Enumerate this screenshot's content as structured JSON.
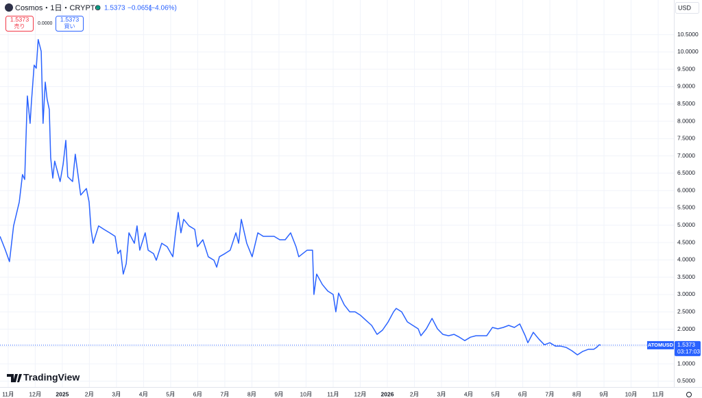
{
  "header": {
    "symbol": "Cosmos・1日・CRYPTO",
    "last": "1.5373",
    "change": "−0.0651",
    "change_pct": "(−4.06%)",
    "sell_price": "1.5373",
    "sell": "売り",
    "spread": "0.0000",
    "buy_price": "1.5373",
    "buy": "買い",
    "currency": "USD",
    "brand": "TradingView"
  },
  "chart_data": {
    "type": "line",
    "x": [
      -0.3,
      -0.1,
      0.05,
      0.2,
      0.41,
      0.53,
      0.61,
      0.71,
      0.81,
      0.86,
      0.96,
      1.04,
      1.11,
      1.22,
      1.29,
      1.37,
      1.44,
      1.52,
      1.57,
      1.65,
      1.72,
      1.92,
      2.03,
      2.13,
      2.2,
      2.38,
      2.48,
      2.68,
      2.89,
      2.99,
      3.06,
      3.14,
      3.34,
      3.54,
      3.75,
      3.95,
      4.05,
      4.15,
      4.25,
      4.36,
      4.46,
      4.66,
      4.76,
      4.86,
      5.06,
      5.17,
      5.37,
      5.47,
      5.67,
      5.87,
      6.08,
      6.18,
      6.28,
      6.38,
      6.48,
      6.68,
      6.89,
      6.99,
      7.19,
      7.39,
      7.6,
      7.7,
      7.8,
      8.0,
      8.2,
      8.41,
      8.51,
      8.61,
      8.81,
      9.01,
      9.22,
      9.42,
      9.62,
      9.82,
      10.03,
      10.23,
      10.43,
      10.63,
      10.73,
      11.04,
      11.24,
      11.29,
      11.39,
      11.6,
      11.8,
      12.0,
      12.1,
      12.2,
      12.41,
      12.61,
      12.81,
      13.01,
      13.22,
      13.42,
      13.62,
      13.82,
      14.03,
      14.23,
      14.33,
      14.53,
      14.74,
      14.94,
      15.14,
      15.24,
      15.44,
      15.65,
      15.85,
      16.05,
      16.26,
      16.46,
      16.66,
      16.86,
      17.07,
      17.27,
      17.47,
      17.67,
      17.88,
      18.08,
      18.28,
      18.48,
      18.69,
      18.89,
      19.09,
      19.19,
      19.39,
      19.6,
      19.8,
      20.0,
      20.21,
      20.41,
      20.61,
      20.81,
      21.02,
      21.22,
      21.42,
      21.62,
      21.72,
      21.82,
      21.87
    ],
    "series": [
      {
        "name": "ATOMUSD",
        "color": "#2962ff",
        "time_to_close": "03:17:03",
        "values": [
          4.68,
          4.28,
          3.95,
          4.98,
          5.67,
          6.46,
          6.32,
          8.73,
          7.94,
          8.54,
          9.62,
          9.53,
          10.36,
          10.02,
          7.94,
          9.13,
          8.64,
          8.34,
          6.95,
          6.36,
          6.85,
          6.26,
          6.76,
          7.45,
          6.4,
          6.26,
          7.05,
          5.87,
          6.06,
          5.67,
          4.88,
          4.48,
          4.98,
          4.88,
          4.78,
          4.68,
          4.18,
          4.28,
          3.59,
          3.89,
          4.78,
          4.48,
          4.98,
          4.28,
          4.78,
          4.28,
          4.18,
          3.99,
          4.48,
          4.38,
          4.09,
          4.78,
          5.37,
          4.78,
          5.17,
          4.98,
          4.88,
          4.38,
          4.58,
          4.09,
          3.99,
          3.79,
          4.09,
          4.18,
          4.28,
          4.78,
          4.48,
          5.17,
          4.48,
          4.09,
          4.78,
          4.68,
          4.68,
          4.68,
          4.58,
          4.58,
          4.78,
          4.38,
          4.09,
          4.28,
          4.28,
          3.0,
          3.59,
          3.29,
          3.1,
          3.0,
          2.5,
          3.04,
          2.7,
          2.5,
          2.5,
          2.4,
          2.25,
          2.11,
          1.85,
          1.97,
          2.21,
          2.5,
          2.6,
          2.5,
          2.21,
          2.11,
          2.01,
          1.81,
          2.01,
          2.31,
          2.01,
          1.85,
          1.81,
          1.85,
          1.77,
          1.67,
          1.77,
          1.81,
          1.81,
          1.81,
          2.05,
          2.01,
          2.05,
          2.11,
          2.05,
          2.15,
          1.81,
          1.61,
          1.91,
          1.71,
          1.55,
          1.61,
          1.51,
          1.51,
          1.47,
          1.38,
          1.26,
          1.36,
          1.42,
          1.42,
          1.47,
          1.55,
          1.5373
        ]
      }
    ],
    "xlim": [
      -0.3,
      24.58
    ],
    "xticks": [
      {
        "value": 0,
        "label": "11月"
      },
      {
        "value": 1,
        "label": "12月"
      },
      {
        "value": 2,
        "label": "2025"
      },
      {
        "value": 3,
        "label": "2月"
      },
      {
        "value": 4,
        "label": "3月"
      },
      {
        "value": 5,
        "label": "4月"
      },
      {
        "value": 6,
        "label": "5月"
      },
      {
        "value": 7,
        "label": "6月"
      },
      {
        "value": 8,
        "label": "7月"
      },
      {
        "value": 9,
        "label": "8月"
      },
      {
        "value": 10,
        "label": "9月"
      },
      {
        "value": 11,
        "label": "10月"
      },
      {
        "value": 12,
        "label": "11月"
      },
      {
        "value": 13,
        "label": "12月"
      },
      {
        "value": 14,
        "label": "2026"
      },
      {
        "value": 15,
        "label": "2月"
      },
      {
        "value": 16,
        "label": "3月"
      },
      {
        "value": 17,
        "label": "4月"
      },
      {
        "value": 18,
        "label": "5月"
      },
      {
        "value": 19,
        "label": "6月"
      },
      {
        "value": 20,
        "label": "7月"
      },
      {
        "value": 21,
        "label": "8月"
      },
      {
        "value": 22,
        "label": "9月"
      },
      {
        "value": 23,
        "label": "10月"
      },
      {
        "value": 24,
        "label": "11月"
      }
    ],
    "ylim": [
      0.33,
      11.5
    ],
    "yticks": [
      {
        "value": 0.5,
        "label": "0.5000"
      },
      {
        "value": 1,
        "label": "1.0000"
      },
      {
        "value": 1.5,
        "label": "1.5000"
      },
      {
        "value": 2,
        "label": "2.0000"
      },
      {
        "value": 2.5,
        "label": "2.5000"
      },
      {
        "value": 3,
        "label": "3.0000"
      },
      {
        "value": 3.5,
        "label": "3.5000"
      },
      {
        "value": 4,
        "label": "4.0000"
      },
      {
        "value": 4.5,
        "label": "4.5000"
      },
      {
        "value": 5,
        "label": "5.0000"
      },
      {
        "value": 5.5,
        "label": "5.5000"
      },
      {
        "value": 6,
        "label": "6.0000"
      },
      {
        "value": 6.5,
        "label": "6.5000"
      },
      {
        "value": 7,
        "label": "7.0000"
      },
      {
        "value": 7.5,
        "label": "7.5000"
      },
      {
        "value": 8,
        "label": "8.0000"
      },
      {
        "value": 8.5,
        "label": "8.5000"
      },
      {
        "value": 9,
        "label": "9.0000"
      },
      {
        "value": 9.5,
        "label": "9.5000"
      },
      {
        "value": 10,
        "label": "10.0000"
      },
      {
        "value": 10.5,
        "label": "10.5000"
      }
    ],
    "grid": true
  }
}
